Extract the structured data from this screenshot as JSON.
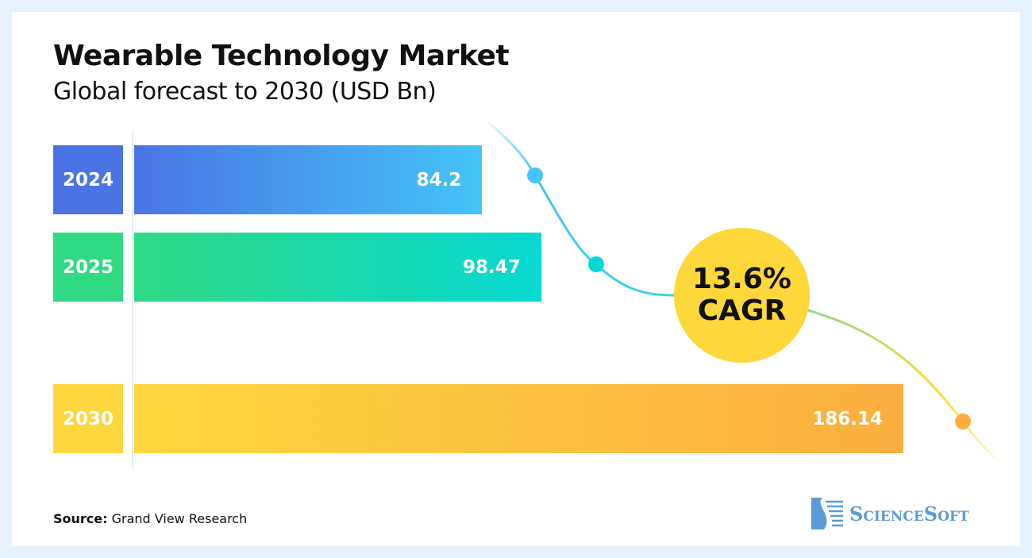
{
  "chart_data": {
    "type": "bar",
    "orientation": "horizontal",
    "title": "Wearable Technology Market",
    "subtitle": "Global forecast to 2030 (USD Bn)",
    "categories": [
      "2024",
      "2025",
      "2030"
    ],
    "values": [
      84.2,
      98.47,
      186.14
    ],
    "value_labels": [
      "84.2",
      "98.47",
      "186.14"
    ],
    "annotation": {
      "value": "13.6%",
      "label": "CAGR"
    },
    "colors": {
      "2024": [
        "#4a74e4",
        "#45c4f8"
      ],
      "2025": [
        "#30d984",
        "#06d9d1"
      ],
      "2030": [
        "#fed73f",
        "#fbae40"
      ]
    }
  },
  "source": {
    "label": "Source:",
    "text": "Grand View Research"
  },
  "logo": {
    "text": "ScienceSoft"
  }
}
